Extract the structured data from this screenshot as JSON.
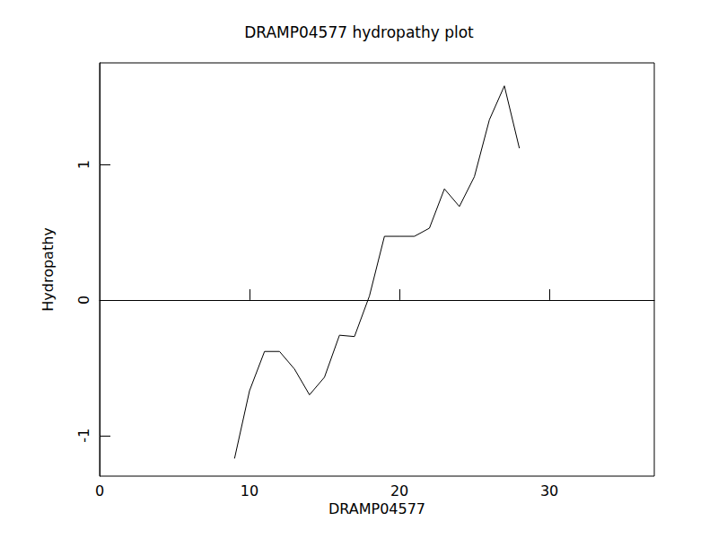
{
  "chart_data": {
    "type": "line",
    "title": "DRAMP04577 hydropathy plot",
    "x_label": "DRAMP04577",
    "y_label": "Hydropathy",
    "x": [
      9,
      10,
      11,
      12,
      13,
      14,
      15,
      16,
      17,
      18,
      19,
      20,
      21,
      22,
      23,
      24,
      25,
      26,
      27,
      28
    ],
    "values": [
      -1.17,
      -0.67,
      -0.38,
      -0.38,
      -0.51,
      -0.7,
      -0.57,
      -0.26,
      -0.27,
      0.03,
      0.47,
      0.47,
      0.47,
      0.53,
      0.82,
      0.69,
      0.91,
      1.33,
      1.58,
      1.12
    ],
    "color": "#000000",
    "xlim": [
      0,
      37
    ],
    "xticks": [
      0,
      10,
      20,
      30
    ],
    "ylim": [
      -1.3,
      1.75
    ],
    "yticks": [
      -1,
      0,
      1
    ],
    "grid": false
  }
}
